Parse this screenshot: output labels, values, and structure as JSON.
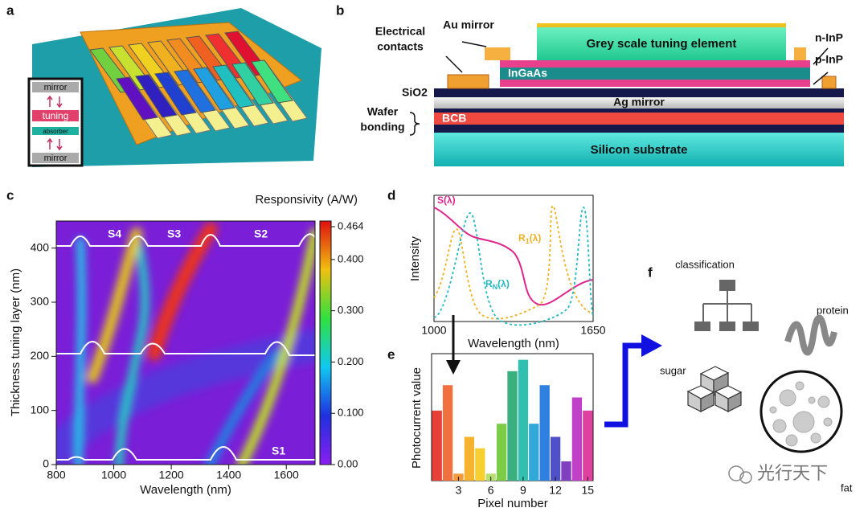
{
  "panels": {
    "a": {
      "label": "a",
      "inset": [
        "mirror",
        "tuning",
        "absorber",
        "mirror"
      ]
    },
    "b": {
      "label": "b",
      "au_mirror": "Au mirror",
      "contacts": [
        "Electrical",
        "contacts"
      ],
      "tuning_element": "Grey scale tuning element",
      "n_inp": "n-InP",
      "p_inp": "p-InP",
      "ingaas": "InGaAs",
      "sio2": "SiO2",
      "ag_mirror": "Ag mirror",
      "wafer_bonding": [
        "Wafer",
        "bonding"
      ],
      "bcb": "BCB",
      "substrate": "Silicon substrate"
    },
    "c": {
      "label": "c",
      "type": "heatmap",
      "xlabel": "Wavelength (nm)",
      "ylabel": "Thickness tuning layer (nm)",
      "xlim": [
        800,
        1700
      ],
      "ylim": [
        0,
        450
      ],
      "xticks": [
        800,
        1000,
        1200,
        1400,
        1600
      ],
      "yticks": [
        0,
        100,
        200,
        300,
        400
      ],
      "colorbar": {
        "title": "Responsivity (A/W)",
        "lim": [
          0,
          0.475
        ],
        "ticks": [
          {
            "value": 0,
            "label": "0.00"
          },
          {
            "value": 0.1,
            "label": "0.100"
          },
          {
            "value": 0.2,
            "label": "0.200"
          },
          {
            "value": 0.3,
            "label": "0.300"
          },
          {
            "value": 0.4,
            "label": "0.400"
          },
          {
            "value": 0.464,
            "label": "0.464"
          }
        ]
      },
      "mode_labels": [
        "S4",
        "S3",
        "S2",
        "S1"
      ]
    },
    "d": {
      "label": "d",
      "type": "line",
      "xlabel": "Wavelength (nm)",
      "ylabel": "Intensity",
      "xlim": [
        1000,
        1650
      ],
      "xticks": [
        1000,
        1650
      ],
      "curves": [
        {
          "label": "S(λ)",
          "color": "#e0248c"
        },
        {
          "label": "R",
          "sub": "1",
          "tail": "(λ)",
          "color": "#f0b020"
        },
        {
          "label": "R",
          "sub": "N",
          "tail": "(λ)",
          "color": "#20b8c0"
        }
      ]
    },
    "e": {
      "label": "e",
      "type": "bar",
      "xlabel": "Pixel number",
      "ylabel": "Photocurrent value",
      "x": [
        1,
        2,
        3,
        4,
        5,
        6,
        7,
        8,
        9,
        10,
        11,
        12,
        13,
        14,
        15
      ],
      "values": [
        80,
        109,
        8,
        50,
        37,
        8,
        65,
        125,
        138,
        65,
        109,
        50,
        22,
        95,
        80
      ],
      "colors": [
        "#e8413a",
        "#f07040",
        "#f29a3a",
        "#f5b330",
        "#f6d030",
        "#b8e070",
        "#7ccc48",
        "#3ab080",
        "#30c0b0",
        "#30a8d8",
        "#2f80e0",
        "#5050c8",
        "#8040c0",
        "#c040c8",
        "#e040a0"
      ],
      "xlim": [
        0.5,
        15.5
      ],
      "ylim": [
        0,
        145
      ],
      "xticks": [
        3,
        6,
        9,
        12,
        15
      ]
    },
    "f": {
      "label": "f",
      "classification": "classification",
      "protein": "protein",
      "sugar": "sugar",
      "fat": "fat"
    }
  },
  "watermark": "光行天下"
}
